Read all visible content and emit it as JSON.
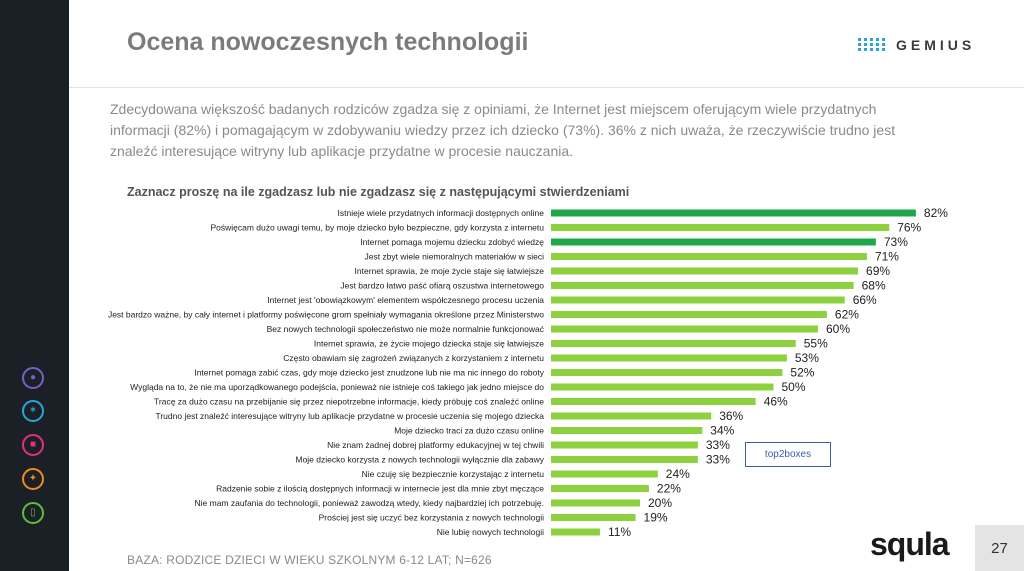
{
  "header": {
    "title": "Ocena nowoczesnych technologii",
    "brand": "GEMIUS"
  },
  "intro": "Zdecydowana większość badanych rodziców zgadza się z opiniami, że Internet jest miejscem oferującym wiele przydatnych informacji (82%) i pomagającym w zdobywaniu wiedzy przez ich dziecko (73%). 36% z nich uważa, że rzeczywiście trudno jest znaleźć interesujące witryny lub aplikacje przydatne w procesie nauczania.",
  "sidebar": {
    "icons": [
      {
        "name": "people-icon",
        "color": "#7b5cc8"
      },
      {
        "name": "lightbulb-icon",
        "color": "#2aa5d8"
      },
      {
        "name": "cart-icon",
        "color": "#e0327a"
      },
      {
        "name": "wrench-icon",
        "color": "#f08a1c"
      },
      {
        "name": "tablet-icon",
        "color": "#5cbf3a"
      }
    ]
  },
  "colors": {
    "highlight": "#1fa84a",
    "bar": "#8dd13e",
    "legend_border": "#3a5ea8"
  },
  "chart_data": {
    "type": "bar",
    "orientation": "horizontal",
    "title": "Zaznacz proszę na ile zgadzasz lub nie zgadzasz się z następującymi stwierdzeniami",
    "legend": [
      "top2boxes"
    ],
    "value_suffix": "%",
    "categories": [
      "Istnieje wiele przydatnych informacji dostępnych online",
      "Poświęcam dużo uwagi temu, by moje dziecko było bezpieczne, gdy korzysta z internetu",
      "Internet pomaga mojemu dziecku zdobyć wiedzę",
      "Jest zbyt wiele niemoralnych materiałów w sieci",
      "Internet sprawia, że moje życie staje się łatwiejsze",
      "Jest bardzo łatwo paść ofiarą oszustwa internetowego",
      "Internet jest 'obowiązkowym' elementem współczesnego procesu uczenia",
      "Jest bardzo ważne, by cały internet i platformy poświęcone grom spełniały wymagania określone przez Ministerstwo",
      "Bez nowych technologii społeczeństwo nie może normalnie funkcjonować",
      "Internet sprawia, że życie mojego dziecka staje się łatwiejsze",
      "Często obawiam się zagrożeń związanych z korzystaniem z internetu",
      "Internet pomaga zabić czas, gdy moje dziecko jest znudzone lub nie ma nic innego do roboty",
      "Wygląda na to, że nie ma uporządkowanego podejścia, ponieważ nie istnieje coś takiego jak jedno miejsce do",
      "Tracę za dużo czasu na przebijanie się przez niepotrzebne informacje, kiedy próbuję coś znaleźć online",
      "Trudno jest znaleźć interesujące witryny lub aplikacje przydatne w procesie uczenia się mojego dziecka",
      "Moje dziecko traci za dużo czasu online",
      "Nie znam żadnej dobrej platformy edukacyjnej w tej chwili",
      "Moje dziecko korzysta z nowych technologii wyłącznie dla zabawy",
      "Nie czuję się bezpiecznie korzystając z internetu",
      "Radzenie sobie z ilością dostępnych informacji w internecie jest dla mnie zbyt męczące",
      "Nie mam zaufania do technologii, ponieważ zawodzą wtedy, kiedy najbardziej ich potrzebuję.",
      "Prościej jest się uczyć bez korzystania z nowych technologii",
      "Nie lubię nowych technologii"
    ],
    "values": [
      82,
      76,
      73,
      71,
      69,
      68,
      66,
      62,
      60,
      55,
      53,
      52,
      50,
      46,
      36,
      34,
      33,
      33,
      24,
      22,
      20,
      19,
      11
    ],
    "highlighted": [
      0,
      2
    ],
    "xlim": [
      0,
      82
    ],
    "grid": false
  },
  "footer": {
    "base_note": "BAZA: RODZICE DZIECI W WIEKU SZKOLNYM 6-12 LAT; N=626",
    "partner_logo": "squla",
    "page_number": "27"
  }
}
